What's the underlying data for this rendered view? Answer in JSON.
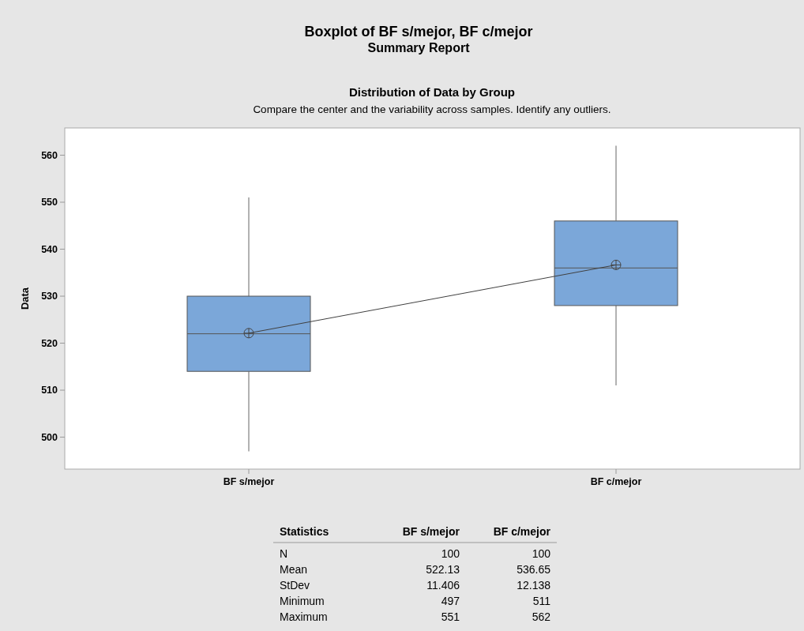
{
  "chart_data": {
    "type": "box",
    "title": "Boxplot of BF s/mejor, BF c/mejor",
    "subtitle": "Summary Report",
    "ylabel": "Data",
    "categories": [
      "BF s/mejor",
      "BF c/mejor"
    ],
    "boxes": [
      {
        "low": 497,
        "q1": 514,
        "median": 522,
        "q3": 530,
        "high": 551,
        "mean": 522.13
      },
      {
        "low": 511,
        "q1": 528,
        "median": 536,
        "q3": 546,
        "high": 562,
        "mean": 536.65
      }
    ],
    "color": "#7ba7d9",
    "series": [
      {
        "type": "line",
        "values": [
          522.13,
          536.65
        ],
        "color": "#404040"
      }
    ],
    "ylim": [
      493.2,
      565.8
    ],
    "yticks": [
      500,
      510,
      520,
      530,
      540,
      550,
      560
    ],
    "grid": false,
    "annotations": [
      "Distribution of Data by Group",
      "Compare the center and the variability across samples. Identify any outliers.",
      "Statistics",
      "BF s/mejor",
      "BF c/mejor",
      "N",
      "100",
      "100",
      "Mean",
      "522.13",
      "536.65",
      "StDev",
      "11.406",
      "12.138",
      "Minimum",
      "497",
      "511",
      "Maximum",
      "551",
      "562"
    ]
  }
}
